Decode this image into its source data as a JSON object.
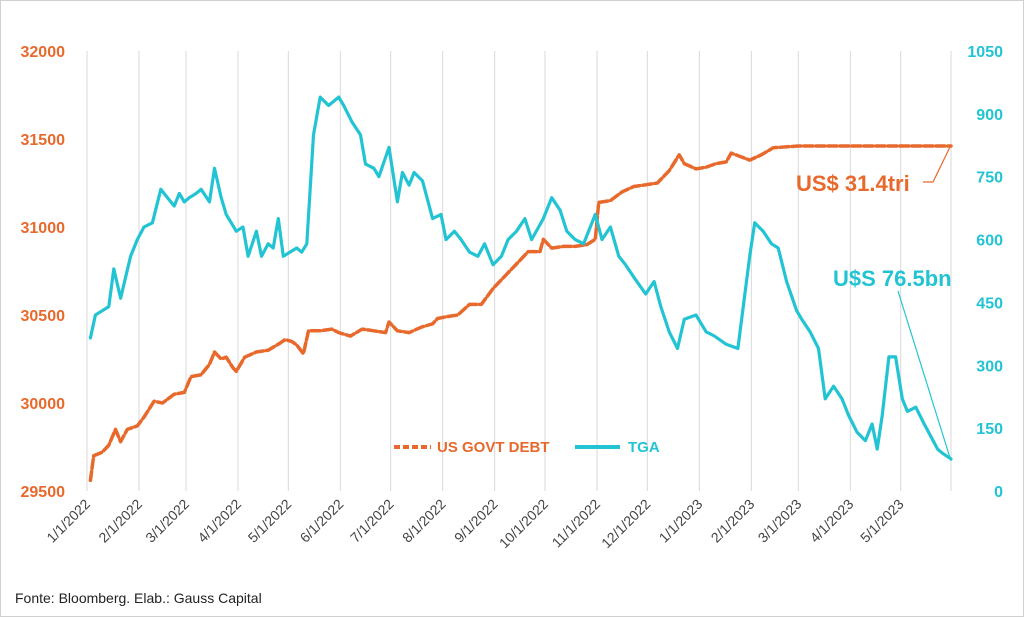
{
  "chart_data": {
    "type": "line",
    "source": "Fonte: Bloomberg. Elab.: Gauss Capital",
    "x_tick_labels": [
      "1/1/2022",
      "2/1/2022",
      "3/1/2022",
      "4/1/2022",
      "5/1/2022",
      "6/1/2022",
      "7/1/2022",
      "8/1/2022",
      "9/1/2022",
      "10/1/2022",
      "11/1/2022",
      "12/1/2022",
      "1/1/2023",
      "2/1/2023",
      "3/1/2023",
      "4/1/2023",
      "5/1/2023"
    ],
    "x_range": [
      "2022-01-01",
      "2023-05-31"
    ],
    "y_left": {
      "ticks": [
        "29500",
        "30000",
        "30500",
        "31000",
        "31500",
        "32000"
      ],
      "range": [
        29500,
        32000
      ],
      "color": "#e8692c"
    },
    "y_right": {
      "ticks": [
        "0",
        "150",
        "300",
        "450",
        "600",
        "750",
        "900",
        "1050"
      ],
      "range": [
        0,
        1050
      ],
      "color": "#22c4d4"
    },
    "grid": "vertical lines at month ticks",
    "legend": {
      "placement": "bottom-center",
      "items": [
        {
          "label": "US GOVT DEBT",
          "color": "#e8692c"
        },
        {
          "label": "TGA",
          "color": "#22c4d4"
        }
      ]
    },
    "annotations": [
      {
        "text": "US$ 31.4tri",
        "series": "US GOVT DEBT",
        "date": "2023-05-31",
        "value": 31460
      },
      {
        "text": "U$S 76.5bn",
        "series": "TGA",
        "date": "2023-05-31",
        "value": 76.5
      }
    ],
    "series": [
      {
        "name": "US GOVT DEBT",
        "axis": "left",
        "color": "#e8692c",
        "points": [
          [
            "2022-01-03",
            29560
          ],
          [
            "2022-01-05",
            29700
          ],
          [
            "2022-01-10",
            29720
          ],
          [
            "2022-01-14",
            29760
          ],
          [
            "2022-01-18",
            29850
          ],
          [
            "2022-01-21",
            29780
          ],
          [
            "2022-01-25",
            29850
          ],
          [
            "2022-01-31",
            29870
          ],
          [
            "2022-02-04",
            29920
          ],
          [
            "2022-02-10",
            30010
          ],
          [
            "2022-02-15",
            30000
          ],
          [
            "2022-02-22",
            30050
          ],
          [
            "2022-02-28",
            30060
          ],
          [
            "2022-03-04",
            30150
          ],
          [
            "2022-03-10",
            30160
          ],
          [
            "2022-03-15",
            30220
          ],
          [
            "2022-03-18",
            30290
          ],
          [
            "2022-03-22",
            30250
          ],
          [
            "2022-03-25",
            30260
          ],
          [
            "2022-03-29",
            30200
          ],
          [
            "2022-03-31",
            30180
          ],
          [
            "2022-04-05",
            30260
          ],
          [
            "2022-04-12",
            30290
          ],
          [
            "2022-04-19",
            30300
          ],
          [
            "2022-04-26",
            30340
          ],
          [
            "2022-04-29",
            30360
          ],
          [
            "2022-05-03",
            30350
          ],
          [
            "2022-05-06",
            30330
          ],
          [
            "2022-05-10",
            30280
          ],
          [
            "2022-05-13",
            30410
          ],
          [
            "2022-05-20",
            30410
          ],
          [
            "2022-05-27",
            30420
          ],
          [
            "2022-05-31",
            30400
          ],
          [
            "2022-06-07",
            30380
          ],
          [
            "2022-06-14",
            30420
          ],
          [
            "2022-06-21",
            30410
          ],
          [
            "2022-06-28",
            30400
          ],
          [
            "2022-06-30",
            30460
          ],
          [
            "2022-07-05",
            30410
          ],
          [
            "2022-07-12",
            30400
          ],
          [
            "2022-07-19",
            30430
          ],
          [
            "2022-07-26",
            30450
          ],
          [
            "2022-07-29",
            30480
          ],
          [
            "2022-08-03",
            30490
          ],
          [
            "2022-08-10",
            30500
          ],
          [
            "2022-08-17",
            30560
          ],
          [
            "2022-08-24",
            30560
          ],
          [
            "2022-08-31",
            30650
          ],
          [
            "2022-09-07",
            30720
          ],
          [
            "2022-09-14",
            30790
          ],
          [
            "2022-09-21",
            30860
          ],
          [
            "2022-09-28",
            30860
          ],
          [
            "2022-09-30",
            30930
          ],
          [
            "2022-10-05",
            30880
          ],
          [
            "2022-10-12",
            30890
          ],
          [
            "2022-10-19",
            30890
          ],
          [
            "2022-10-26",
            30900
          ],
          [
            "2022-10-31",
            30930
          ],
          [
            "2022-11-02",
            31140
          ],
          [
            "2022-11-09",
            31150
          ],
          [
            "2022-11-16",
            31200
          ],
          [
            "2022-11-23",
            31230
          ],
          [
            "2022-11-30",
            31240
          ],
          [
            "2022-12-07",
            31250
          ],
          [
            "2022-12-14",
            31320
          ],
          [
            "2022-12-20",
            31410
          ],
          [
            "2022-12-23",
            31360
          ],
          [
            "2022-12-30",
            31330
          ],
          [
            "2023-01-05",
            31340
          ],
          [
            "2023-01-11",
            31360
          ],
          [
            "2023-01-17",
            31370
          ],
          [
            "2023-01-20",
            31420
          ],
          [
            "2023-01-31",
            31380
          ],
          [
            "2023-02-07",
            31410
          ],
          [
            "2023-02-14",
            31450
          ],
          [
            "2023-03-01",
            31460
          ],
          [
            "2023-04-01",
            31460
          ],
          [
            "2023-05-01",
            31460
          ],
          [
            "2023-05-31",
            31460
          ]
        ]
      },
      {
        "name": "TGA",
        "axis": "right",
        "color": "#22c4d4",
        "points": [
          [
            "2022-01-03",
            365
          ],
          [
            "2022-01-06",
            420
          ],
          [
            "2022-01-10",
            430
          ],
          [
            "2022-01-14",
            440
          ],
          [
            "2022-01-17",
            530
          ],
          [
            "2022-01-21",
            460
          ],
          [
            "2022-01-27",
            560
          ],
          [
            "2022-01-31",
            600
          ],
          [
            "2022-02-04",
            630
          ],
          [
            "2022-02-09",
            640
          ],
          [
            "2022-02-14",
            720
          ],
          [
            "2022-02-18",
            700
          ],
          [
            "2022-02-22",
            680
          ],
          [
            "2022-02-25",
            710
          ],
          [
            "2022-02-28",
            690
          ],
          [
            "2022-03-03",
            700
          ],
          [
            "2022-03-07",
            710
          ],
          [
            "2022-03-10",
            720
          ],
          [
            "2022-03-15",
            690
          ],
          [
            "2022-03-18",
            770
          ],
          [
            "2022-03-22",
            700
          ],
          [
            "2022-03-25",
            660
          ],
          [
            "2022-03-31",
            620
          ],
          [
            "2022-04-04",
            630
          ],
          [
            "2022-04-07",
            560
          ],
          [
            "2022-04-12",
            620
          ],
          [
            "2022-04-15",
            560
          ],
          [
            "2022-04-19",
            590
          ],
          [
            "2022-04-22",
            580
          ],
          [
            "2022-04-25",
            650
          ],
          [
            "2022-04-28",
            560
          ],
          [
            "2022-05-02",
            570
          ],
          [
            "2022-05-06",
            580
          ],
          [
            "2022-05-09",
            570
          ],
          [
            "2022-05-12",
            590
          ],
          [
            "2022-05-16",
            850
          ],
          [
            "2022-05-20",
            940
          ],
          [
            "2022-05-25",
            920
          ],
          [
            "2022-05-31",
            940
          ],
          [
            "2022-06-03",
            920
          ],
          [
            "2022-06-08",
            880
          ],
          [
            "2022-06-13",
            850
          ],
          [
            "2022-06-16",
            780
          ],
          [
            "2022-06-21",
            770
          ],
          [
            "2022-06-24",
            750
          ],
          [
            "2022-06-30",
            820
          ],
          [
            "2022-07-05",
            690
          ],
          [
            "2022-07-08",
            760
          ],
          [
            "2022-07-12",
            730
          ],
          [
            "2022-07-15",
            760
          ],
          [
            "2022-07-20",
            740
          ],
          [
            "2022-07-26",
            650
          ],
          [
            "2022-07-31",
            660
          ],
          [
            "2022-08-03",
            600
          ],
          [
            "2022-08-08",
            620
          ],
          [
            "2022-08-12",
            600
          ],
          [
            "2022-08-17",
            570
          ],
          [
            "2022-08-22",
            560
          ],
          [
            "2022-08-26",
            590
          ],
          [
            "2022-08-31",
            540
          ],
          [
            "2022-09-05",
            560
          ],
          [
            "2022-09-09",
            600
          ],
          [
            "2022-09-14",
            620
          ],
          [
            "2022-09-19",
            650
          ],
          [
            "2022-09-23",
            600
          ],
          [
            "2022-09-30",
            650
          ],
          [
            "2022-10-05",
            700
          ],
          [
            "2022-10-10",
            670
          ],
          [
            "2022-10-14",
            620
          ],
          [
            "2022-10-19",
            600
          ],
          [
            "2022-10-24",
            590
          ],
          [
            "2022-10-31",
            660
          ],
          [
            "2022-11-04",
            600
          ],
          [
            "2022-11-09",
            630
          ],
          [
            "2022-11-14",
            560
          ],
          [
            "2022-11-18",
            540
          ],
          [
            "2022-11-23",
            510
          ],
          [
            "2022-11-30",
            470
          ],
          [
            "2022-12-05",
            500
          ],
          [
            "2022-12-09",
            440
          ],
          [
            "2022-12-14",
            380
          ],
          [
            "2022-12-19",
            340
          ],
          [
            "2022-12-23",
            410
          ],
          [
            "2022-12-30",
            420
          ],
          [
            "2023-01-05",
            380
          ],
          [
            "2023-01-10",
            370
          ],
          [
            "2023-01-17",
            350
          ],
          [
            "2023-01-24",
            340
          ],
          [
            "2023-01-31",
            560
          ],
          [
            "2023-02-03",
            640
          ],
          [
            "2023-02-08",
            620
          ],
          [
            "2023-02-13",
            590
          ],
          [
            "2023-02-17",
            580
          ],
          [
            "2023-02-22",
            500
          ],
          [
            "2023-02-28",
            430
          ],
          [
            "2023-03-03",
            410
          ],
          [
            "2023-03-08",
            380
          ],
          [
            "2023-03-13",
            340
          ],
          [
            "2023-03-17",
            220
          ],
          [
            "2023-03-22",
            250
          ],
          [
            "2023-03-27",
            220
          ],
          [
            "2023-03-31",
            180
          ],
          [
            "2023-04-05",
            140
          ],
          [
            "2023-04-10",
            120
          ],
          [
            "2023-04-14",
            160
          ],
          [
            "2023-04-17",
            100
          ],
          [
            "2023-04-20",
            180
          ],
          [
            "2023-04-24",
            320
          ],
          [
            "2023-04-28",
            320
          ],
          [
            "2023-05-02",
            220
          ],
          [
            "2023-05-05",
            190
          ],
          [
            "2023-05-10",
            200
          ],
          [
            "2023-05-15",
            160
          ],
          [
            "2023-05-19",
            130
          ],
          [
            "2023-05-23",
            100
          ],
          [
            "2023-05-26",
            90
          ],
          [
            "2023-05-31",
            76.5
          ]
        ]
      }
    ]
  }
}
